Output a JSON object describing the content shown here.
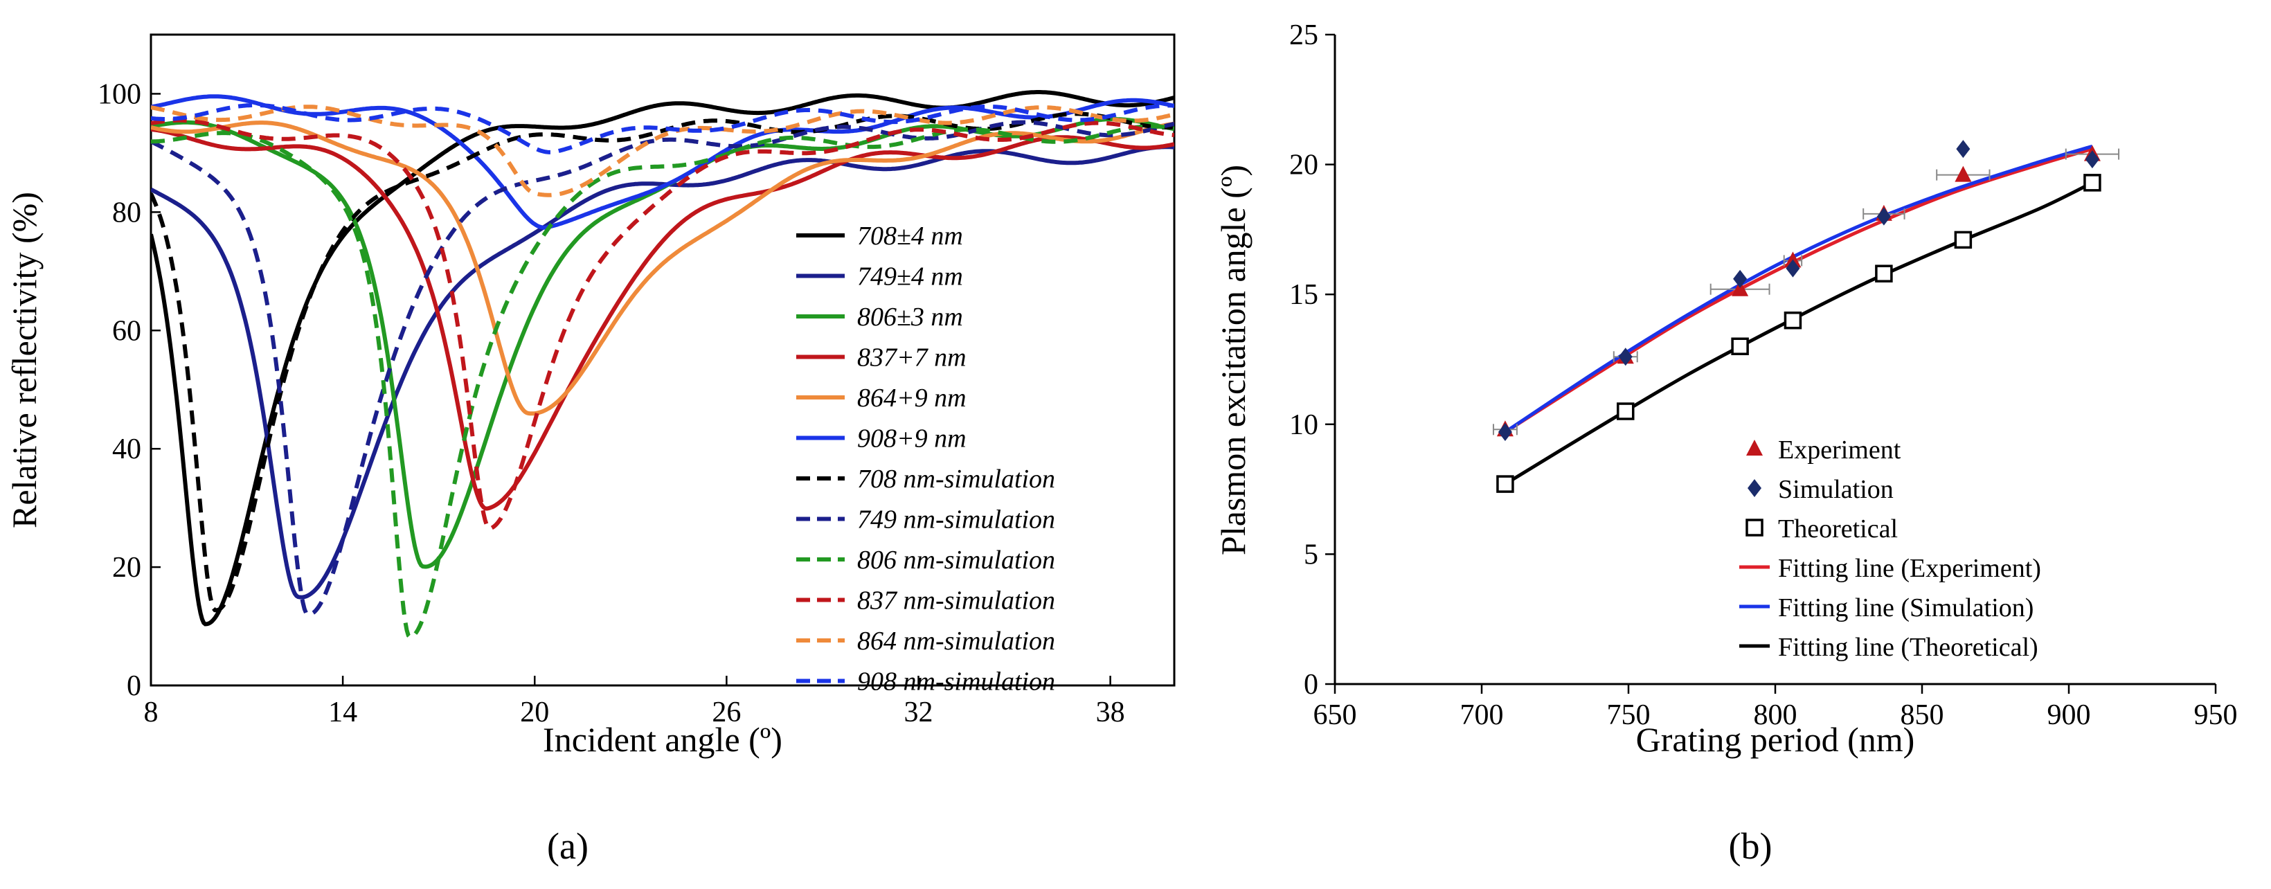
{
  "chart_data": [
    {
      "type": "line",
      "panel_label": "(a)",
      "xlabel": "Incident angle (º)",
      "ylabel": "Relative reflectivity (%)",
      "xlim": [
        8,
        40
      ],
      "ylim": [
        0,
        110
      ],
      "xticks": [
        "8",
        "14",
        "20",
        "26",
        "32",
        "38"
      ],
      "yticks": [
        "0",
        "20",
        "40",
        "60",
        "80",
        "100"
      ],
      "legend_position": "inside-right",
      "series": [
        {
          "name": "708±4 nm",
          "color": "#000000",
          "dash": "solid",
          "dip_x": 9.7,
          "dip_y": 11.5,
          "base": 100,
          "width": 1.4
        },
        {
          "name": "749±4 nm",
          "color": "#1b1f8c",
          "dash": "solid",
          "dip_x": 12.6,
          "dip_y": 15,
          "base": 91,
          "width": 1.8
        },
        {
          "name": "806±3 nm",
          "color": "#229922",
          "dash": "solid",
          "dip_x": 16.5,
          "dip_y": 20,
          "base": 96,
          "width": 1.6
        },
        {
          "name": "837+7 nm",
          "color": "#c0161b",
          "dash": "solid",
          "dip_x": 18.5,
          "dip_y": 29,
          "base": 94,
          "width": 1.9
        },
        {
          "name": "864+9 nm",
          "color": "#ef8a3a",
          "dash": "solid",
          "dip_x": 19.8,
          "dip_y": 47,
          "base": 96,
          "width": 2.3
        },
        {
          "name": "908+9 nm",
          "color": "#1a34e8",
          "dash": "solid",
          "dip_x": 20.4,
          "dip_y": 77,
          "base": 99,
          "width": 2.4
        },
        {
          "name": "708 nm-simulation",
          "color": "#000000",
          "dash": "dashed",
          "dip_x": 10.0,
          "dip_y": 13,
          "base": 96,
          "width": 1.2
        },
        {
          "name": "749 nm-simulation",
          "color": "#1b1f8c",
          "dash": "dashed",
          "dip_x": 12.9,
          "dip_y": 11,
          "base": 95,
          "width": 1.3
        },
        {
          "name": "806 nm-simulation",
          "color": "#229922",
          "dash": "dashed",
          "dip_x": 16.1,
          "dip_y": 7,
          "base": 94,
          "width": 1.1
        },
        {
          "name": "837 nm-simulation",
          "color": "#c0161b",
          "dash": "dashed",
          "dip_x": 18.6,
          "dip_y": 27,
          "base": 95,
          "width": 1.3
        },
        {
          "name": "864 nm-simulation",
          "color": "#ef8a3a",
          "dash": "dashed",
          "dip_x": 20.0,
          "dip_y": 83,
          "base": 97,
          "width": 1.6
        },
        {
          "name": "908 nm-simulation",
          "color": "#1a34e8",
          "dash": "dashed",
          "dip_x": 20.6,
          "dip_y": 91,
          "base": 97,
          "width": 1.8
        }
      ]
    },
    {
      "type": "scatter",
      "panel_label": "(b)",
      "xlabel": "Grating period (nm)",
      "ylabel": "Plasmon excitation angle (º)",
      "xlim": [
        650,
        950
      ],
      "ylim": [
        0,
        25
      ],
      "xticks": [
        "650",
        "700",
        "750",
        "800",
        "850",
        "900",
        "950"
      ],
      "yticks": [
        "0",
        "5",
        "10",
        "15",
        "20",
        "25"
      ],
      "legend_position": "bottom-right",
      "series": [
        {
          "name": "Experiment",
          "marker": "triangle",
          "color": "#c0161b",
          "x": [
            708,
            749,
            788,
            806,
            837,
            864,
            908
          ],
          "y": [
            9.8,
            12.6,
            15.2,
            16.3,
            18.1,
            19.6,
            20.4
          ],
          "xerr": [
            4,
            4,
            10,
            3,
            7,
            9,
            9
          ]
        },
        {
          "name": "Simulation",
          "marker": "diamond",
          "color": "#1b2c6b",
          "x": [
            708,
            749,
            788,
            806,
            837,
            864,
            908
          ],
          "y": [
            9.7,
            12.6,
            15.6,
            16.0,
            18.0,
            20.6,
            20.2
          ]
        },
        {
          "name": "Theoretical",
          "marker": "square-open",
          "color": "#000000",
          "x": [
            708,
            749,
            788,
            806,
            837,
            864,
            908
          ],
          "y": [
            7.7,
            10.5,
            13.0,
            14.0,
            15.8,
            17.1,
            19.3
          ]
        }
      ],
      "fits": [
        {
          "name": "Fitting line (Experiment)",
          "color": "#e0202a",
          "x": [
            708,
            740,
            770,
            800,
            830,
            860,
            890,
            908
          ],
          "y": [
            9.7,
            12.0,
            14.1,
            15.9,
            17.5,
            18.9,
            20.0,
            20.6
          ]
        },
        {
          "name": "Fitting line (Simulation)",
          "color": "#1a34e8",
          "x": [
            708,
            740,
            770,
            800,
            830,
            860,
            890,
            908
          ],
          "y": [
            9.7,
            12.1,
            14.2,
            16.1,
            17.7,
            19.0,
            20.1,
            20.7
          ]
        },
        {
          "name": "Fitting line (Theoretical)",
          "color": "#000000",
          "x": [
            708,
            740,
            770,
            800,
            830,
            860,
            890,
            908
          ],
          "y": [
            7.7,
            9.9,
            11.9,
            13.7,
            15.4,
            16.9,
            18.3,
            19.3
          ]
        }
      ]
    }
  ]
}
